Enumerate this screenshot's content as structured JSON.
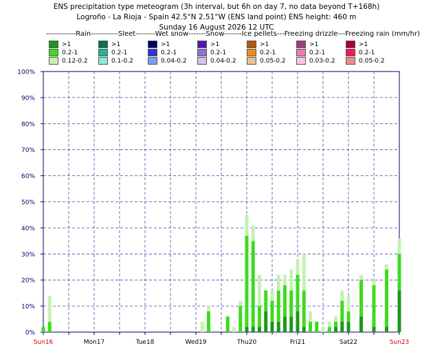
{
  "title_lines": [
    "ENS precipitation type meteogram (3h interval, but 6h on day 7, no data beyond T+168h)",
    "Logroño - La Rioja - Spain 42.5°N 2.51°W (ENS land point) ENS height: 460 m",
    "Sunday 16 August 2026 12 UTC"
  ],
  "legend_header": "------------Rain-----------Sleet--------Wet snow-------Snow-------Ice pellets---Freezing drizzle---Freezing rain (mm/hr)",
  "legend": [
    {
      "type": "Rain",
      "entries": [
        {
          "label": ">1",
          "color": "#1e961e"
        },
        {
          "label": "0.2-1",
          "color": "#3cdc1e"
        },
        {
          "label": "0.12-0.2",
          "color": "#c8f0b4"
        }
      ]
    },
    {
      "type": "Sleet",
      "entries": [
        {
          "label": ">1",
          "color": "#0f6e5a"
        },
        {
          "label": "0.2-1",
          "color": "#1eb496"
        },
        {
          "label": "0.1-0.2",
          "color": "#8cebd2"
        }
      ]
    },
    {
      "type": "Wet snow",
      "entries": [
        {
          "label": ">1",
          "color": "#000064"
        },
        {
          "label": "0.2-1",
          "color": "#3232dc"
        },
        {
          "label": "0.04-0.2",
          "color": "#78a0f0"
        }
      ]
    },
    {
      "type": "Snow",
      "entries": [
        {
          "label": ">1",
          "color": "#5014b4"
        },
        {
          "label": "0.2-1",
          "color": "#966edc"
        },
        {
          "label": "0.04-0.2",
          "color": "#d2c3f0"
        }
      ]
    },
    {
      "type": "Ice pellets",
      "entries": [
        {
          "label": ">1",
          "color": "#b45a0a"
        },
        {
          "label": "0.2-1",
          "color": "#f58c14"
        },
        {
          "label": "0.05-0.2",
          "color": "#e6c396"
        }
      ]
    },
    {
      "type": "Freezing drizzle",
      "entries": [
        {
          "label": ">1",
          "color": "#a03c78"
        },
        {
          "label": "0.2-1",
          "color": "#f078b4"
        },
        {
          "label": "0.03-0.2",
          "color": "#fac8e1"
        }
      ]
    },
    {
      "type": "Freezing rain",
      "entries": [
        {
          "label": ">1",
          "color": "#aa0032"
        },
        {
          "label": "0.2-1",
          "color": "#f5195a"
        },
        {
          "label": "0.05-0.2",
          "color": "#f08c8c"
        }
      ]
    }
  ],
  "chart_data": {
    "type": "bar",
    "stacked": true,
    "y_unit": "%",
    "ylim": [
      0,
      100
    ],
    "yticks": [
      "0%",
      "10%",
      "20%",
      "30%",
      "40%",
      "50%",
      "60%",
      "70%",
      "80%",
      "90%",
      "100%"
    ],
    "x_hours_range": [
      0,
      168
    ],
    "xticks": [
      {
        "label": "Sun16",
        "hour": 0,
        "color": "#dd0000"
      },
      {
        "label": "Mon17",
        "hour": 24,
        "color": "#000000"
      },
      {
        "label": "Tue18",
        "hour": 48,
        "color": "#000000"
      },
      {
        "label": "Wed19",
        "hour": 72,
        "color": "#000000"
      },
      {
        "label": "Thu20",
        "hour": 96,
        "color": "#000000"
      },
      {
        "label": "Fri21",
        "hour": 120,
        "color": "#000000"
      },
      {
        "label": "Sat22",
        "hour": 144,
        "color": "#000000"
      },
      {
        "label": "Sun23",
        "hour": 168,
        "color": "#dd0000"
      }
    ],
    "grid": true,
    "series_colors": {
      "heavy": "#1e961e",
      "moderate": "#3cdc1e",
      "light": "#c8f0b4"
    },
    "bars": [
      {
        "hour": 0,
        "heavy": 0,
        "moderate": 2,
        "light": 0
      },
      {
        "hour": 3,
        "heavy": 0,
        "moderate": 4,
        "light": 10
      },
      {
        "hour": 75,
        "heavy": 0,
        "moderate": 0,
        "light": 4
      },
      {
        "hour": 78,
        "heavy": 0,
        "moderate": 8,
        "light": 2
      },
      {
        "hour": 87,
        "heavy": 0,
        "moderate": 6,
        "light": 0
      },
      {
        "hour": 90,
        "heavy": 0,
        "moderate": 0,
        "light": 2
      },
      {
        "hour": 93,
        "heavy": 0,
        "moderate": 10,
        "light": 2
      },
      {
        "hour": 96,
        "heavy": 2,
        "moderate": 35,
        "light": 8
      },
      {
        "hour": 99,
        "heavy": 2,
        "moderate": 33,
        "light": 6
      },
      {
        "hour": 102,
        "heavy": 2,
        "moderate": 8,
        "light": 12
      },
      {
        "hour": 105,
        "heavy": 8,
        "moderate": 8,
        "light": 0
      },
      {
        "hour": 108,
        "heavy": 4,
        "moderate": 8,
        "light": 4
      },
      {
        "hour": 111,
        "heavy": 4,
        "moderate": 12,
        "light": 6
      },
      {
        "hour": 114,
        "heavy": 6,
        "moderate": 12,
        "light": 4
      },
      {
        "hour": 117,
        "heavy": 6,
        "moderate": 10,
        "light": 8
      },
      {
        "hour": 120,
        "heavy": 8,
        "moderate": 14,
        "light": 6
      },
      {
        "hour": 123,
        "heavy": 2,
        "moderate": 14,
        "light": 14
      },
      {
        "hour": 126,
        "heavy": 0,
        "moderate": 4,
        "light": 4
      },
      {
        "hour": 129,
        "heavy": 0,
        "moderate": 4,
        "light": 0
      },
      {
        "hour": 132,
        "heavy": 0,
        "moderate": 0,
        "light": 2
      },
      {
        "hour": 135,
        "heavy": 0,
        "moderate": 2,
        "light": 2
      },
      {
        "hour": 138,
        "heavy": 2,
        "moderate": 2,
        "light": 2
      },
      {
        "hour": 141,
        "heavy": 4,
        "moderate": 8,
        "light": 4
      },
      {
        "hour": 144,
        "heavy": 4,
        "moderate": 4,
        "light": 6
      },
      {
        "hour": 150,
        "heavy": 6,
        "moderate": 14,
        "light": 2
      },
      {
        "hour": 156,
        "heavy": 2,
        "moderate": 16,
        "light": 2
      },
      {
        "hour": 162,
        "heavy": 2,
        "moderate": 22,
        "light": 2
      },
      {
        "hour": 168,
        "heavy": 16,
        "moderate": 14,
        "light": 6
      }
    ]
  }
}
